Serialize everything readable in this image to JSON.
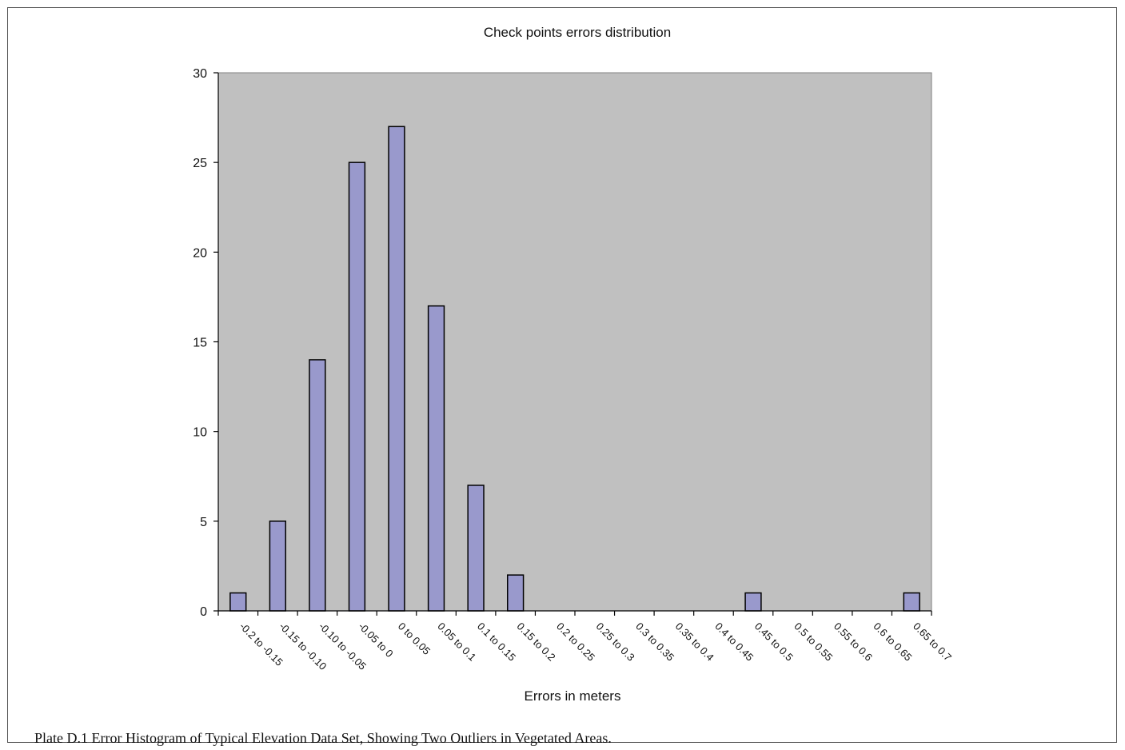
{
  "caption": "Plate D.1 Error Histogram of Typical Elevation Data Set, Showing Two Outliers in Vegetated Areas.",
  "chart_data": {
    "type": "bar",
    "title": "Check points errors distribution",
    "xlabel": "Errors in meters",
    "ylabel": "",
    "ylim": [
      0,
      30
    ],
    "yticks": [
      0,
      5,
      10,
      15,
      20,
      25,
      30
    ],
    "grid": false,
    "legend": "none",
    "colors": {
      "plot_background": "#c0c0c0",
      "bar_fill": "#9999cc",
      "bar_stroke": "#000000"
    },
    "categories": [
      "-0.2 to -0.15",
      "-0.15 to -0.10",
      "-0.10 to -0.05",
      "-0.05 to 0",
      "0 to 0.05",
      "0.05 to 0.1",
      "0.1 to 0.15",
      "0.15 to 0.2",
      "0.2 to 0.25",
      "0.25 to 0.3",
      "0.3 to 0.35",
      "0.35 to 0.4",
      "0.4 to 0.45",
      "0.45 to 0.5",
      "0.5 to 0.55",
      "0.55 to 0.6",
      "0.6 to 0.65",
      "0.65 to 0.7"
    ],
    "values": [
      1,
      5,
      14,
      25,
      27,
      17,
      7,
      2,
      0,
      0,
      0,
      0,
      0,
      1,
      0,
      0,
      0,
      1
    ]
  }
}
